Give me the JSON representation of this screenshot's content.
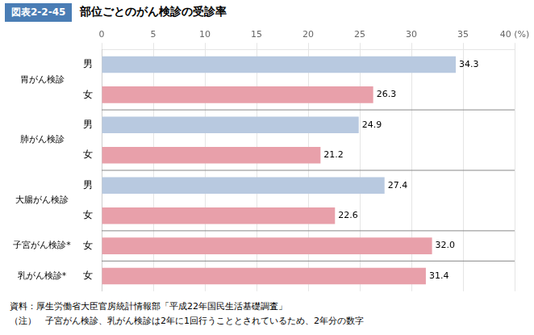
{
  "chart_data": {
    "type": "bar",
    "orientation": "horizontal",
    "title": "部位ごとのがん検診の受診率",
    "annotations": [
      "図表2-2-45",
      "資料：厚生労働省大臣官房統計情報部「平成22年国民生活基礎調査」",
      "（注）　子宮がん検診、乳がん検診は2年に1回行うこととされているため、2年分の数字"
    ],
    "groups": [
      "胃がん検診",
      "胃がん検診",
      "肺がん検診",
      "肺がん検診",
      "大腸がん検診",
      "大腸がん検診",
      "子宮がん検診*",
      "乳がん検診*"
    ],
    "categories": [
      "男",
      "女",
      "男",
      "女",
      "男",
      "女",
      "女",
      "女"
    ],
    "values": [
      34.3,
      26.3,
      24.9,
      21.2,
      27.4,
      22.6,
      32.0,
      31.4
    ],
    "value_labels": [
      "34.3",
      "26.3",
      "24.9",
      "21.2",
      "27.4",
      "22.6",
      "32.0",
      "31.4"
    ],
    "colors": [
      "#b8c9e0",
      "#e8a0aa",
      "#b8c9e0",
      "#e8a0aa",
      "#b8c9e0",
      "#e8a0aa",
      "#e8a0aa",
      "#e8a0aa"
    ],
    "xlim": [
      0,
      40
    ],
    "xticks": [
      0,
      5,
      10,
      15,
      20,
      25,
      30,
      35,
      {
        "value": 40,
        "label": "40 (%)"
      }
    ],
    "grid": true,
    "data_labels": true
  }
}
